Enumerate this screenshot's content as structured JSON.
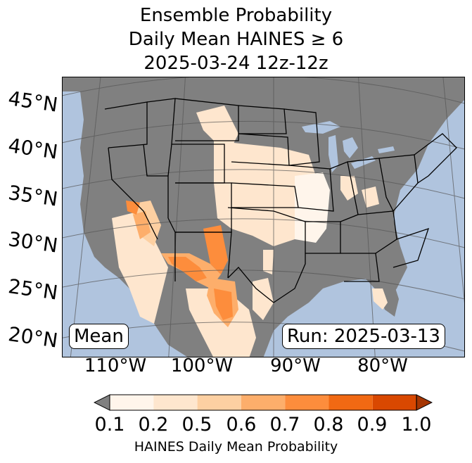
{
  "title": {
    "line1": "Ensemble Probability",
    "line2": "Daily Mean HAINES ≥ 6",
    "line3": "2025-03-24 12z-12z"
  },
  "map": {
    "lat_labels": [
      "45°N",
      "40°N",
      "35°N",
      "30°N",
      "25°N",
      "20°N"
    ],
    "lon_labels": [
      "110°W",
      "100°W",
      "90°W",
      "80°W"
    ],
    "mean_label": "Mean",
    "run_label": "Run: 2025-03-13",
    "colors": {
      "ocean": "#b0c4de",
      "land_zero": "#808080",
      "state_lines": "#000000"
    }
  },
  "colorbar": {
    "ticks": [
      "0.1",
      "0.2",
      "0.5",
      "0.6",
      "0.7",
      "0.8",
      "0.9",
      "1.0"
    ],
    "label": "HAINES Daily Mean Probability",
    "under_color": "#808080",
    "colors": [
      "#fff5eb",
      "#fee6ce",
      "#fdd0a2",
      "#fdae6b",
      "#fd8d3c",
      "#f16913",
      "#d94801"
    ],
    "over_color": "#a63603"
  }
}
